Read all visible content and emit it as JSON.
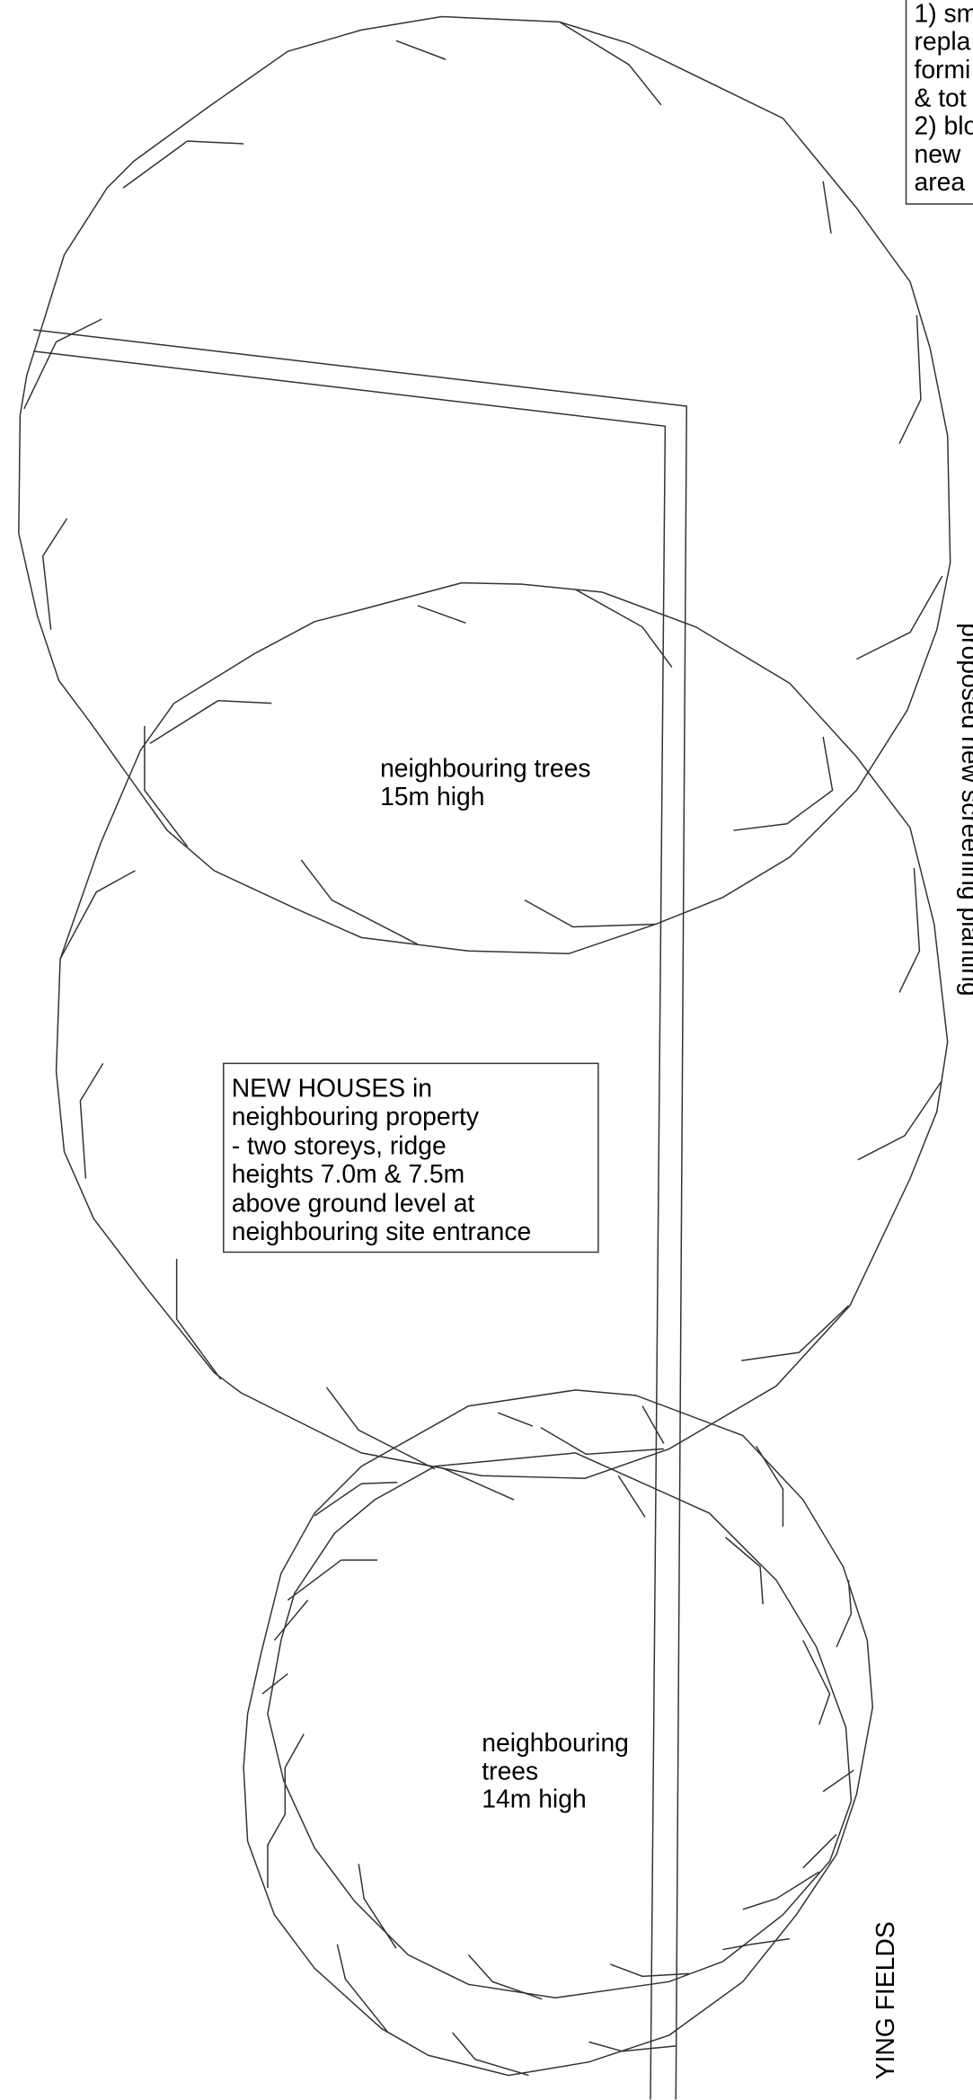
{
  "top_note": {
    "lines": [
      "1) sm",
      "repla",
      "formi",
      "& tot",
      "2) blo",
      "new",
      "area"
    ]
  },
  "side_label": "proposed new screening planting",
  "bottom_side_label": "YING FIELDS",
  "tree_label_upper": {
    "lines": [
      "neighbouring trees",
      "15m high"
    ]
  },
  "houses_box": {
    "lines": [
      "NEW HOUSES in",
      "neighbouring property",
      "- two storeys, ridge",
      "heights 7.0m & 7.5m",
      "above ground level at",
      "neighbouring site entrance"
    ]
  },
  "tree_label_lower": {
    "lines": [
      "neighbouring",
      "trees",
      "14m high"
    ]
  }
}
